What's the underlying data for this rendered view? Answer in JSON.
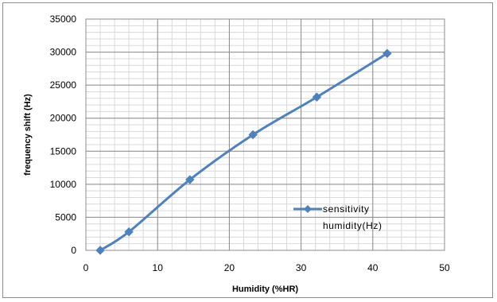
{
  "chart_data": {
    "type": "line",
    "xlabel": "Humidity (%HR)",
    "ylabel": "frequency shift (Hz)",
    "xlim": [
      0,
      50
    ],
    "ylim": [
      0,
      35000
    ],
    "x_ticks": [
      "0",
      "10",
      "20",
      "30",
      "40",
      "50"
    ],
    "y_ticks": [
      "0",
      "5000",
      "10000",
      "15000",
      "20000",
      "25000",
      "30000",
      "35000"
    ],
    "grid": true,
    "legend_position": "lower-right inside plot",
    "series": [
      {
        "name": "sensitivity humidity(Hz)",
        "legend_lines": [
          "sensitivity",
          "humidity(Hz)"
        ],
        "color": "#4f81bd",
        "marker": "diamond",
        "points": [
          {
            "x": 2,
            "y": 0
          },
          {
            "x": 6,
            "y": 2800
          },
          {
            "x": 14.5,
            "y": 10700
          },
          {
            "x": 23.3,
            "y": 17500
          },
          {
            "x": 32.2,
            "y": 23200
          },
          {
            "x": 42,
            "y": 29800
          }
        ]
      }
    ]
  }
}
